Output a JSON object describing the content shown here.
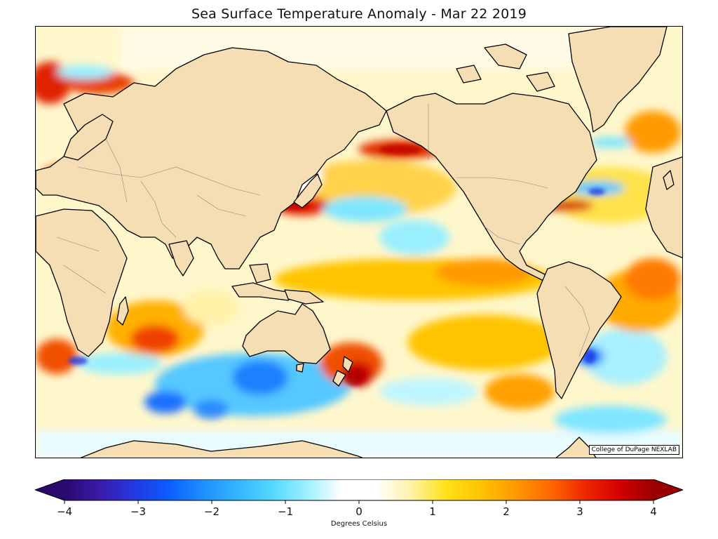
{
  "title": "Sea Surface Temperature Anomaly - Mar 22 2019",
  "credit": "College of DuPage NEXLAB",
  "colorbar": {
    "label": "Degrees Celsius",
    "min": -4,
    "max": 4,
    "ticks": [
      "−4",
      "−3",
      "−2",
      "−1",
      "0",
      "1",
      "2",
      "3",
      "4"
    ],
    "extend": "both",
    "colors": [
      "#2a0a6e",
      "#3a1aa8",
      "#2438e0",
      "#0b5cff",
      "#1e90ff",
      "#34b4ff",
      "#55d8ff",
      "#9df0ff",
      "#ffffff",
      "#ffffff",
      "#fff2a8",
      "#ffe21a",
      "#ffc400",
      "#ff9a00",
      "#ff6a00",
      "#f02800",
      "#d40000",
      "#9a0000"
    ]
  },
  "map": {
    "land_color": "#f5deb3",
    "coastline_color": "#000000",
    "border_color": "#888888"
  }
}
